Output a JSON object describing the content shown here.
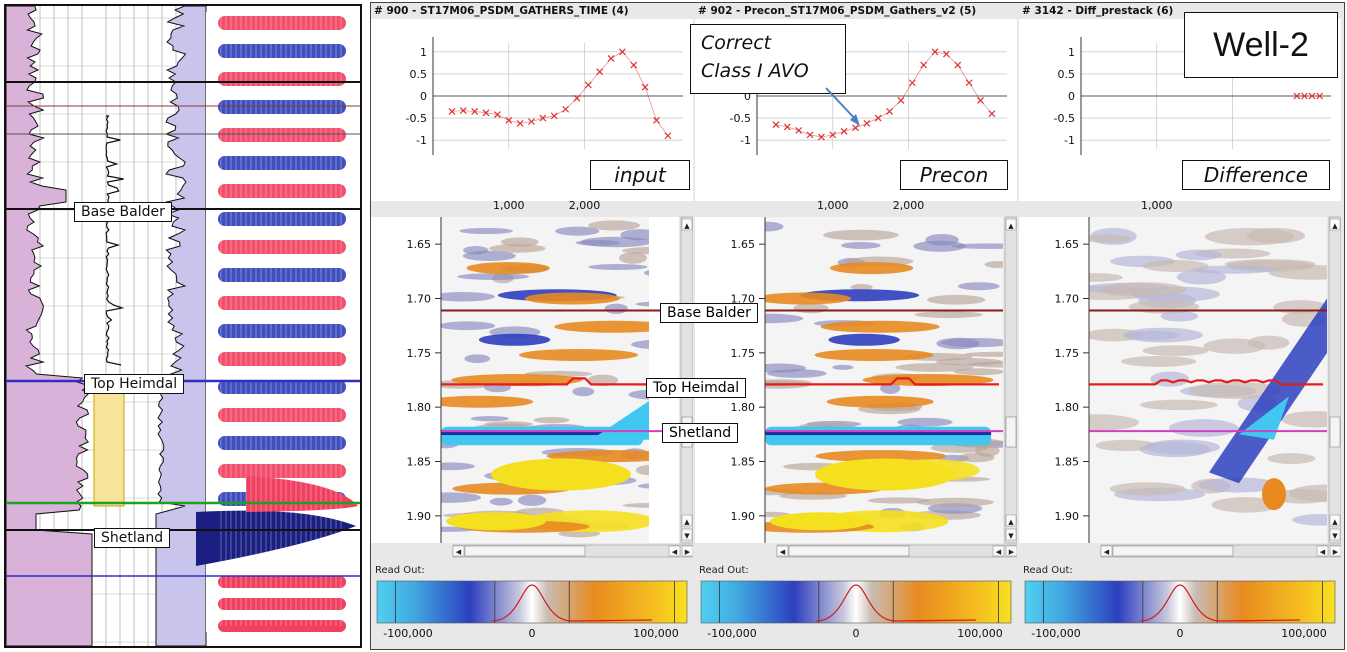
{
  "well_title": "Well-2",
  "annotation": {
    "line1": "Correct",
    "line2": "Class I AVO"
  },
  "horizons": {
    "base_balder": "Base Balder",
    "top_heimdal": "Top Heimdal",
    "shetland": "Shetland"
  },
  "readout_label": "Read Out:",
  "panels": [
    {
      "id": "input",
      "header": "# 900 - ST17M06_PSDM_GATHERS_TIME (4)",
      "tag": "input"
    },
    {
      "id": "precon",
      "header": "# 902 - Precon_ST17M06_PSDM_Gathers_v2 (5)",
      "tag": "Precon"
    },
    {
      "id": "difference",
      "header": "# 3142 - Diff_prestack (6)",
      "tag": "Difference"
    }
  ],
  "avo_plot": {
    "y_ticks": [
      "1",
      "0.5",
      "0",
      "-0.5",
      "-1"
    ],
    "x_ticks": [
      "1,000",
      "2,000"
    ]
  },
  "time_axis": {
    "ticks": [
      "1.65",
      "1.70",
      "1.75",
      "1.80",
      "1.85",
      "1.90"
    ]
  },
  "colorbar": {
    "ticks": [
      "-100,000",
      "0",
      "100,000"
    ]
  },
  "colors": {
    "curve": "#e03030",
    "base_balder_line": "#8b1a1a",
    "top_heimdal_line": "#e51c1c",
    "shetland_line": "#d040c0",
    "blue": "#2d3fbf",
    "cyan": "#40c8f0",
    "orange": "#e88a20",
    "yellow": "#f5e020"
  },
  "chart_data": [
    {
      "type": "scatter",
      "name_hint": "input",
      "x": [
        250,
        400,
        550,
        700,
        850,
        1000,
        1150,
        1300,
        1450,
        1600,
        1750,
        1900,
        2050,
        2200,
        2350,
        2500,
        2650,
        2800,
        2950,
        3100
      ],
      "y": [
        -0.35,
        -0.33,
        -0.35,
        -0.38,
        -0.42,
        -0.55,
        -0.62,
        -0.58,
        -0.5,
        -0.45,
        -0.3,
        -0.05,
        0.25,
        0.55,
        0.85,
        1.0,
        0.7,
        0.2,
        -0.55,
        -0.9
      ],
      "ylim": [
        -1.2,
        1.2
      ]
    },
    {
      "type": "scatter",
      "name_hint": "precon",
      "x": [
        250,
        400,
        550,
        700,
        850,
        1000,
        1150,
        1300,
        1450,
        1600,
        1750,
        1900,
        2050,
        2200,
        2350,
        2500,
        2650,
        2800,
        2950,
        3100
      ],
      "y": [
        -0.65,
        -0.7,
        -0.78,
        -0.88,
        -0.93,
        -0.88,
        -0.8,
        -0.72,
        -0.62,
        -0.5,
        -0.35,
        -0.1,
        0.3,
        0.7,
        1.0,
        0.95,
        0.7,
        0.3,
        -0.1,
        -0.4
      ],
      "ylim": [
        -1.2,
        1.2
      ]
    },
    {
      "type": "scatter",
      "name_hint": "difference",
      "x": [
        2850,
        2950,
        3050,
        3150
      ],
      "y": [
        0,
        0,
        0,
        0
      ],
      "ylim": [
        -1.2,
        1.2
      ]
    }
  ]
}
